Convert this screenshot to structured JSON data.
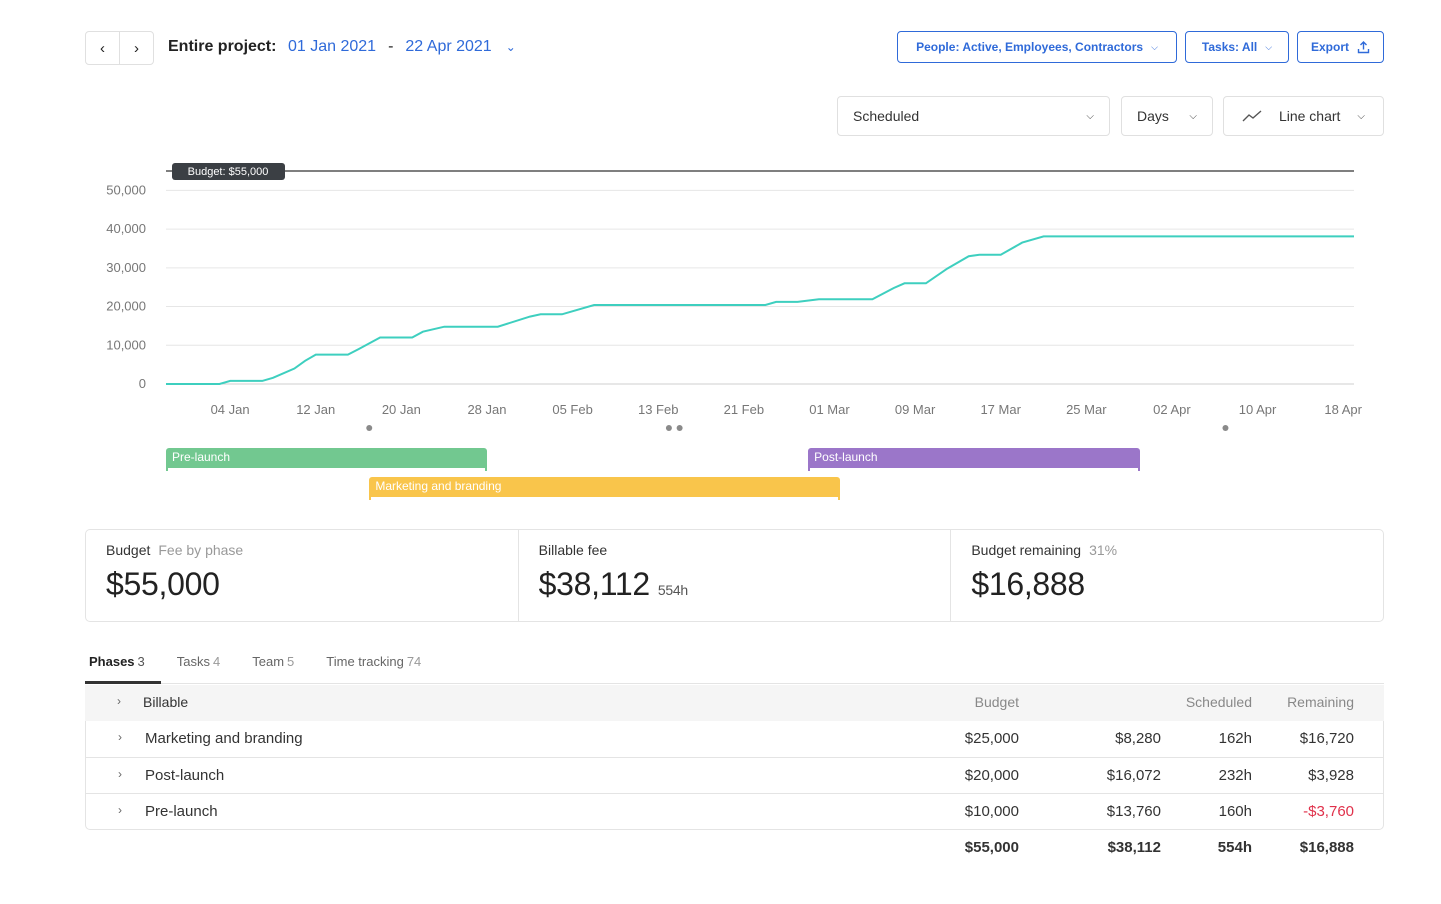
{
  "toolbar": {
    "project_label": "Entire project:",
    "date_start": "01 Jan 2021",
    "date_sep": "-",
    "date_end": "22 Apr 2021",
    "people_filter": "People: Active, Employees, Contractors",
    "tasks_filter": "Tasks: All",
    "export_label": "Export"
  },
  "controls": {
    "metric": "Scheduled",
    "interval": "Days",
    "chart_type": "Line chart"
  },
  "chart_data": {
    "type": "line",
    "ylim": [
      0,
      55000
    ],
    "yticks": [
      0,
      10000,
      20000,
      30000,
      40000,
      50000
    ],
    "ytick_labels": [
      "0",
      "10,000",
      "20,000",
      "30,000",
      "40,000",
      "50,000"
    ],
    "xlabels": [
      "04 Jan",
      "12 Jan",
      "20 Jan",
      "28 Jan",
      "05 Feb",
      "13 Feb",
      "21 Feb",
      "01 Mar",
      "09 Mar",
      "17 Mar",
      "25 Mar",
      "02 Apr",
      "10 Apr",
      "18 Apr"
    ],
    "x_start": "2021-01-01",
    "x_end": "2021-04-22",
    "budget_label": "Budget: $55,000",
    "budget_value": 55000,
    "line_color": "#3ecfbf",
    "points": [
      [
        "2021-01-01",
        0
      ],
      [
        "2021-01-06",
        0
      ],
      [
        "2021-01-07",
        800
      ],
      [
        "2021-01-10",
        800
      ],
      [
        "2021-01-11",
        1600
      ],
      [
        "2021-01-13",
        4000
      ],
      [
        "2021-01-14",
        6000
      ],
      [
        "2021-01-15",
        7600
      ],
      [
        "2021-01-18",
        7600
      ],
      [
        "2021-01-19",
        9000
      ],
      [
        "2021-01-21",
        12000
      ],
      [
        "2021-01-24",
        12000
      ],
      [
        "2021-01-25",
        13500
      ],
      [
        "2021-01-27",
        14800
      ],
      [
        "2021-02-01",
        14800
      ],
      [
        "2021-02-04",
        17400
      ],
      [
        "2021-02-05",
        18000
      ],
      [
        "2021-02-07",
        18000
      ],
      [
        "2021-02-10",
        20400
      ],
      [
        "2021-02-26",
        20400
      ],
      [
        "2021-02-27",
        21200
      ],
      [
        "2021-03-01",
        21200
      ],
      [
        "2021-03-03",
        21900
      ],
      [
        "2021-03-08",
        21900
      ],
      [
        "2021-03-10",
        24800
      ],
      [
        "2021-03-11",
        26000
      ],
      [
        "2021-03-13",
        26000
      ],
      [
        "2021-03-15",
        29800
      ],
      [
        "2021-03-17",
        33000
      ],
      [
        "2021-03-18",
        33400
      ],
      [
        "2021-03-20",
        33400
      ],
      [
        "2021-03-22",
        36500
      ],
      [
        "2021-03-24",
        38112
      ],
      [
        "2021-04-22",
        38112
      ]
    ],
    "markers": [
      "2021-01-17",
      "2021-02-14",
      "2021-02-15",
      "2021-04-07"
    ]
  },
  "phases_timeline": [
    {
      "label": "Pre-launch",
      "color": "#72c890",
      "start": "2021-01-01",
      "end": "2021-01-31",
      "lane": 0
    },
    {
      "label": "Marketing and branding",
      "color": "#f9c54b",
      "start": "2021-01-20",
      "end": "2021-03-05",
      "lane": 1
    },
    {
      "label": "Post-launch",
      "color": "#9b76c9",
      "start": "2021-03-02",
      "end": "2021-04-02",
      "lane": 0
    }
  ],
  "summary": {
    "budget_label": "Budget",
    "budget_sub": "Fee by phase",
    "budget_value": "$55,000",
    "billable_label": "Billable fee",
    "billable_value": "$38,112",
    "billable_hours": "554h",
    "remaining_label": "Budget remaining",
    "remaining_pct": "31%",
    "remaining_value": "$16,888"
  },
  "tabs": [
    {
      "label": "Phases",
      "count": "3"
    },
    {
      "label": "Tasks",
      "count": "4"
    },
    {
      "label": "Team",
      "count": "5"
    },
    {
      "label": "Time tracking",
      "count": "74"
    }
  ],
  "table": {
    "group_title": "Billable",
    "columns": {
      "budget": "Budget",
      "scheduled": "Scheduled",
      "remaining": "Remaining"
    },
    "rows": [
      {
        "name": "Marketing and branding",
        "budget": "$25,000",
        "fee": "$8,280",
        "hours": "162h",
        "remaining": "$16,720"
      },
      {
        "name": "Post-launch",
        "budget": "$20,000",
        "fee": "$16,072",
        "hours": "232h",
        "remaining": "$3,928"
      },
      {
        "name": "Pre-launch",
        "budget": "$10,000",
        "fee": "$13,760",
        "hours": "160h",
        "remaining": "-$3,760"
      }
    ],
    "totals": {
      "budget": "$55,000",
      "fee": "$38,112",
      "hours": "554h",
      "remaining": "$16,888"
    }
  }
}
